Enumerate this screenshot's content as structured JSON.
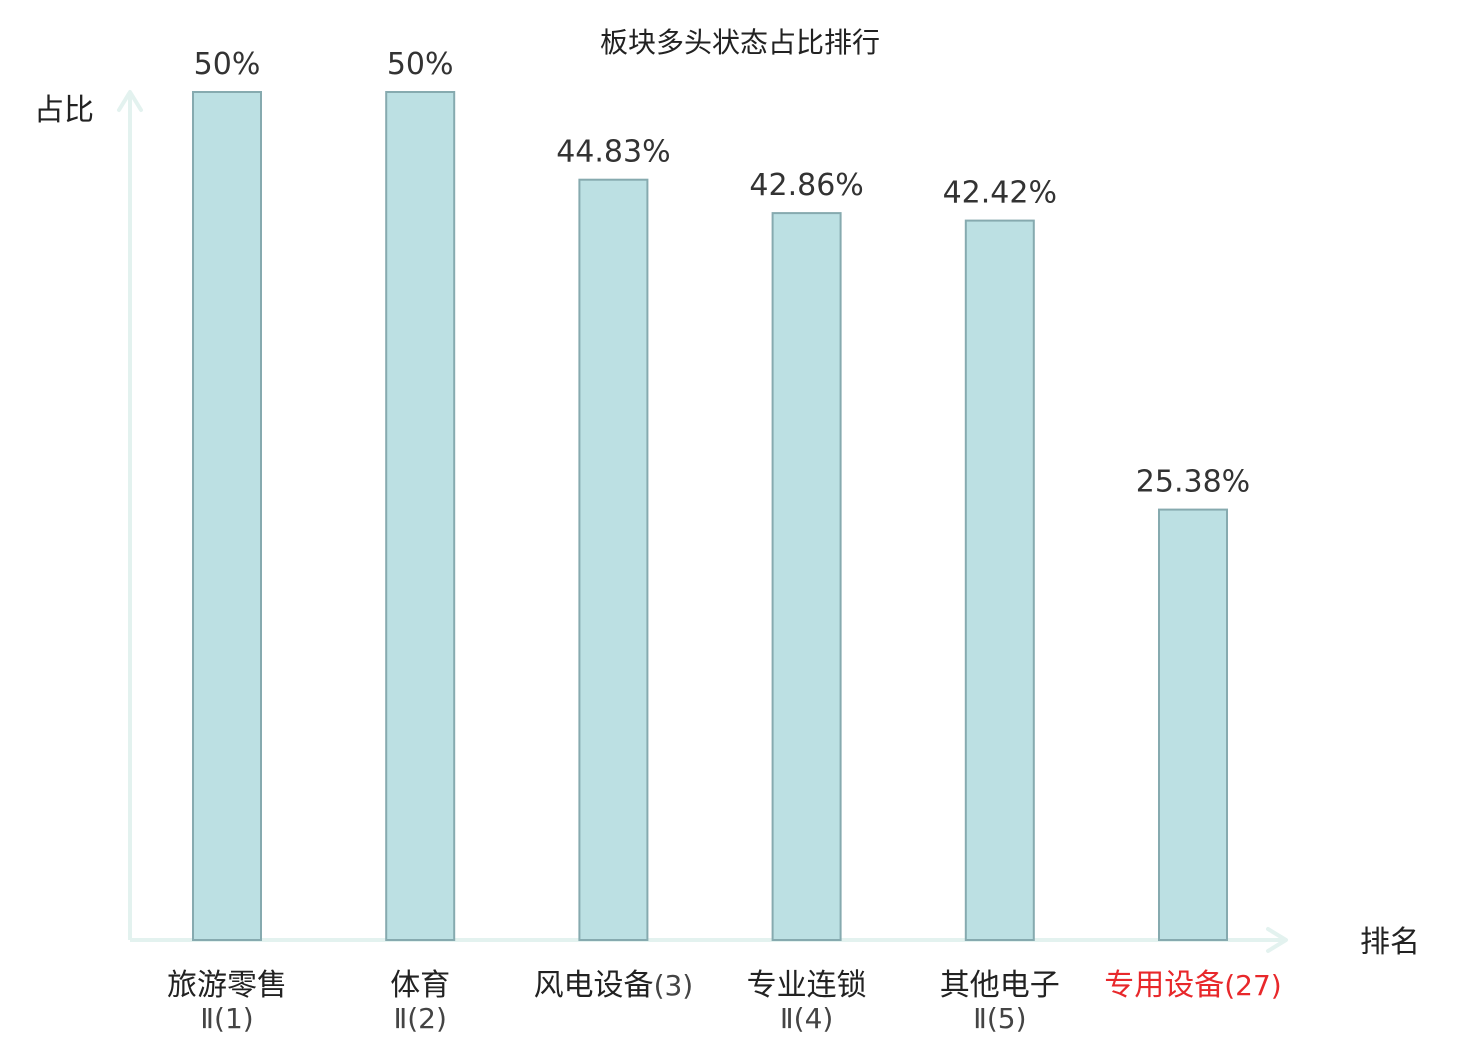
{
  "chart_data": {
    "type": "bar",
    "title": "板块多头状态占比排行",
    "ylabel": "占比",
    "xlabel": "排名",
    "ylim": [
      0,
      50
    ],
    "grid": false,
    "categories": [
      {
        "name": "旅游零售",
        "rank": "Ⅱ(1)"
      },
      {
        "name": "体育",
        "rank": "Ⅱ(2)"
      },
      {
        "name": "风电设备",
        "rank": "(3)"
      },
      {
        "name": "专业连锁",
        "rank": "Ⅱ(4)"
      },
      {
        "name": "其他电子",
        "rank": "Ⅱ(5)"
      },
      {
        "name": "专用设备",
        "rank": "(27)"
      }
    ],
    "values": [
      50,
      50,
      44.83,
      42.86,
      42.42,
      25.38
    ],
    "value_labels": [
      "50%",
      "50%",
      "44.83%",
      "42.86%",
      "42.42%",
      "25.38%"
    ],
    "highlight_index": 5
  },
  "colors": {
    "bar_fill": "#bce0e3",
    "bar_stroke": "#86aaaf",
    "axis": "#e3f2ef",
    "text": "#222222",
    "value_text": "#333333",
    "rank_text": "#444444",
    "highlight": "#e8282b"
  }
}
